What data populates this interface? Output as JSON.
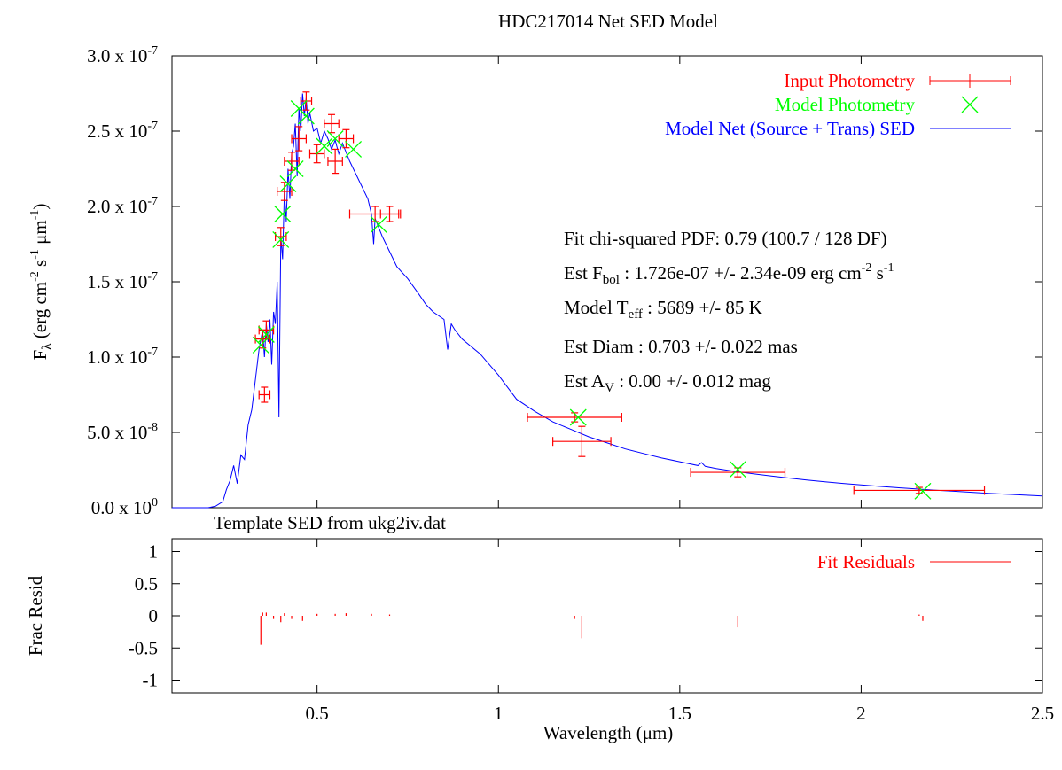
{
  "chart_data": [
    {
      "type": "line",
      "title": "HDC217014 Net SED Model",
      "ylabel": "F_λ (erg cm^-2 s^-1 μm^-1)",
      "xlim": [
        0.1,
        2.5
      ],
      "ylim": [
        0,
        3e-07
      ],
      "y_tick_labels": [
        {
          "v": 0.0,
          "m": "0.0",
          "e": "0"
        },
        {
          "v": 5e-08,
          "m": "5.0",
          "e": "-8"
        },
        {
          "v": 1e-07,
          "m": "1.0",
          "e": "-7"
        },
        {
          "v": 1.5e-07,
          "m": "1.5",
          "e": "-7"
        },
        {
          "v": 2e-07,
          "m": "2.0",
          "e": "-7"
        },
        {
          "v": 2.5e-07,
          "m": "2.5",
          "e": "-7"
        },
        {
          "v": 3e-07,
          "m": "3.0",
          "e": "-7"
        }
      ],
      "legend_position": "top-right",
      "legend": [
        {
          "label": "Input Photometry",
          "color": "#ff0000",
          "marker": "errorbar-cross"
        },
        {
          "label": "Model Photometry",
          "color": "#00ff00",
          "marker": "x"
        },
        {
          "label": "Model Net (Source + Trans) SED",
          "color": "#0000ff",
          "marker": "line"
        }
      ],
      "annotations": {
        "chi2": "Fit chi-squared PDF: 0.79 (100.7 / 128 DF)",
        "fbol_prefix": "Est F",
        "fbol_sub": "bol",
        "fbol_value": " : 1.726e-07 +/- 2.34e-09 erg cm",
        "fbol_exp1": "-2",
        "fbol_mid": " s",
        "fbol_exp2": "-1",
        "teff_prefix": "Model T",
        "teff_sub": "eff",
        "teff_value": " : 5689 +/- 85 K",
        "diam": "Est Diam : 0.703 +/- 0.022 mas",
        "av_prefix": "Est A",
        "av_sub": "V",
        "av_value": " : 0.00 +/- 0.012 mag",
        "template": "Template SED from ukg2iv.dat"
      },
      "series": [
        {
          "name": "Model Net (Source + Trans) SED",
          "color": "#0000ff",
          "x": [
            0.1,
            0.2,
            0.22,
            0.24,
            0.25,
            0.26,
            0.27,
            0.28,
            0.29,
            0.3,
            0.31,
            0.32,
            0.33,
            0.34,
            0.35,
            0.355,
            0.36,
            0.365,
            0.37,
            0.375,
            0.38,
            0.385,
            0.39,
            0.395,
            0.4,
            0.405,
            0.41,
            0.415,
            0.42,
            0.425,
            0.43,
            0.435,
            0.44,
            0.445,
            0.45,
            0.455,
            0.46,
            0.465,
            0.47,
            0.475,
            0.48,
            0.49,
            0.5,
            0.51,
            0.52,
            0.53,
            0.54,
            0.55,
            0.56,
            0.57,
            0.58,
            0.59,
            0.6,
            0.62,
            0.64,
            0.65,
            0.656,
            0.66,
            0.68,
            0.7,
            0.72,
            0.75,
            0.78,
            0.8,
            0.82,
            0.85,
            0.86,
            0.87,
            0.88,
            0.9,
            0.95,
            1.0,
            1.05,
            1.1,
            1.15,
            1.2,
            1.25,
            1.3,
            1.35,
            1.4,
            1.45,
            1.5,
            1.55,
            1.56,
            1.57,
            1.6,
            1.65,
            1.7,
            1.75,
            1.8,
            1.85,
            1.9,
            1.95,
            2.0,
            2.05,
            2.1,
            2.15,
            2.2,
            2.25,
            2.3,
            2.35,
            2.4,
            2.45,
            2.5
          ],
          "y": [
            0,
            0,
            1e-09,
            4e-09,
            1.2e-08,
            1.8e-08,
            2.8e-08,
            1.6e-08,
            3.5e-08,
            3.2e-08,
            5.5e-08,
            6.5e-08,
            8.5e-08,
            1.05e-07,
            1.18e-07,
            1e-07,
            1.22e-07,
            1.1e-07,
            1.25e-07,
            9.5e-08,
            1.3e-07,
            1.22e-07,
            1.5e-07,
            6e-08,
            1.8e-07,
            1.65e-07,
            2.1e-07,
            1.9e-07,
            2.25e-07,
            2.05e-07,
            2.35e-07,
            2.4e-07,
            2.55e-07,
            2.2e-07,
            2.65e-07,
            2.5e-07,
            2.75e-07,
            2.6e-07,
            2.72e-07,
            2.55e-07,
            2.62e-07,
            2.5e-07,
            2.52e-07,
            2.42e-07,
            2.5e-07,
            2.45e-07,
            2.38e-07,
            2.44e-07,
            2.35e-07,
            2.42e-07,
            2.36e-07,
            2.3e-07,
            2.25e-07,
            2.15e-07,
            2.05e-07,
            1.95e-07,
            1.75e-07,
            1.92e-07,
            1.8e-07,
            1.7e-07,
            1.6e-07,
            1.52e-07,
            1.42e-07,
            1.35e-07,
            1.3e-07,
            1.25e-07,
            1.05e-07,
            1.22e-07,
            1.18e-07,
            1.12e-07,
            1.02e-07,
            8.8e-08,
            7.2e-08,
            6.4e-08,
            5.7e-08,
            5.2e-08,
            4.7e-08,
            4.3e-08,
            3.9e-08,
            3.6e-08,
            3.3e-08,
            3.05e-08,
            2.8e-08,
            3e-08,
            2.75e-08,
            2.6e-08,
            2.42e-08,
            2.26e-08,
            2.11e-08,
            1.97e-08,
            1.84e-08,
            1.72e-08,
            1.61e-08,
            1.51e-08,
            1.42e-08,
            1.33e-08,
            1.25e-08,
            1.17e-08,
            1.1e-08,
            1.03e-08,
            9.6e-09,
            9e-09,
            8.4e-09,
            7.8e-09
          ]
        },
        {
          "name": "Input Photometry",
          "color": "#ff0000",
          "points": [
            {
              "x": 0.35,
              "y": 1.12e-07,
              "xerr": 0.02,
              "yerr": 6e-09
            },
            {
              "x": 0.36,
              "y": 1.18e-07,
              "xerr": 0.02,
              "yerr": 6e-09
            },
            {
              "x": 0.355,
              "y": 7.5e-08,
              "xerr": 0.015,
              "yerr": 5e-09
            },
            {
              "x": 0.4,
              "y": 1.8e-07,
              "xerr": 0.015,
              "yerr": 6e-09
            },
            {
              "x": 0.41,
              "y": 2.1e-07,
              "xerr": 0.02,
              "yerr": 6e-09
            },
            {
              "x": 0.43,
              "y": 2.3e-07,
              "xerr": 0.02,
              "yerr": 6e-09
            },
            {
              "x": 0.45,
              "y": 2.45e-07,
              "xerr": 0.02,
              "yerr": 8e-09
            },
            {
              "x": 0.47,
              "y": 2.7e-07,
              "xerr": 0.015,
              "yerr": 6e-09
            },
            {
              "x": 0.5,
              "y": 2.35e-07,
              "xerr": 0.02,
              "yerr": 6e-09
            },
            {
              "x": 0.54,
              "y": 2.55e-07,
              "xerr": 0.02,
              "yerr": 6e-09
            },
            {
              "x": 0.55,
              "y": 2.3e-07,
              "xerr": 0.02,
              "yerr": 8e-09
            },
            {
              "x": 0.58,
              "y": 2.45e-07,
              "xerr": 0.02,
              "yerr": 6e-09
            },
            {
              "x": 0.66,
              "y": 1.95e-07,
              "xerr": 0.07,
              "yerr": 5e-09
            },
            {
              "x": 0.7,
              "y": 1.95e-07,
              "xerr": 0.025,
              "yerr": 5e-09
            },
            {
              "x": 1.21,
              "y": 6e-08,
              "xerr": 0.13,
              "yerr": 3e-09
            },
            {
              "x": 1.23,
              "y": 4.4e-08,
              "xerr": 0.08,
              "yerr": 1e-08
            },
            {
              "x": 1.66,
              "y": 2.35e-08,
              "xerr": 0.13,
              "yerr": 3e-09
            },
            {
              "x": 2.16,
              "y": 1.15e-08,
              "xerr": 0.18,
              "yerr": 2e-09
            }
          ]
        },
        {
          "name": "Model Photometry",
          "color": "#00ff00",
          "points": [
            {
              "x": 0.345,
              "y": 1.08e-07
            },
            {
              "x": 0.36,
              "y": 1.15e-07
            },
            {
              "x": 0.4,
              "y": 1.78e-07
            },
            {
              "x": 0.405,
              "y": 1.95e-07
            },
            {
              "x": 0.42,
              "y": 2.15e-07
            },
            {
              "x": 0.44,
              "y": 2.25e-07
            },
            {
              "x": 0.45,
              "y": 2.65e-07
            },
            {
              "x": 0.47,
              "y": 2.6e-07
            },
            {
              "x": 0.52,
              "y": 2.4e-07
            },
            {
              "x": 0.55,
              "y": 2.45e-07
            },
            {
              "x": 0.6,
              "y": 2.38e-07
            },
            {
              "x": 0.67,
              "y": 1.88e-07
            },
            {
              "x": 1.22,
              "y": 6e-08
            },
            {
              "x": 1.66,
              "y": 2.55e-08
            },
            {
              "x": 2.17,
              "y": 1.1e-08
            }
          ]
        }
      ]
    },
    {
      "type": "line",
      "ylabel": "Frac Resid",
      "xlabel": "Wavelength (μm)",
      "xlim": [
        0.1,
        2.5
      ],
      "ylim": [
        -1.2,
        1.2
      ],
      "x_tick_labels": [
        "0.5",
        "1",
        "1.5",
        "2",
        "2.5"
      ],
      "x_ticks": [
        0.5,
        1,
        1.5,
        2,
        2.5
      ],
      "y_tick_labels": [
        "1",
        "0.5",
        "0",
        "-0.5",
        "-1"
      ],
      "y_ticks": [
        1,
        0.5,
        0,
        -0.5,
        -1
      ],
      "legend_position": "top-right",
      "legend": [
        {
          "label": "Fit Residuals",
          "color": "#ff0000",
          "marker": "line"
        }
      ],
      "series": [
        {
          "name": "Fit Residuals",
          "color": "#ff0000",
          "points": [
            {
              "x": 0.345,
              "y": -0.45
            },
            {
              "x": 0.35,
              "y": 0.05
            },
            {
              "x": 0.36,
              "y": 0.05
            },
            {
              "x": 0.38,
              "y": -0.05
            },
            {
              "x": 0.4,
              "y": -0.1
            },
            {
              "x": 0.41,
              "y": 0.04
            },
            {
              "x": 0.43,
              "y": -0.05
            },
            {
              "x": 0.46,
              "y": -0.08
            },
            {
              "x": 0.5,
              "y": 0.03
            },
            {
              "x": 0.55,
              "y": 0.03
            },
            {
              "x": 0.58,
              "y": 0.04
            },
            {
              "x": 0.65,
              "y": 0.03
            },
            {
              "x": 0.7,
              "y": 0.02
            },
            {
              "x": 1.21,
              "y": -0.05
            },
            {
              "x": 1.23,
              "y": -0.35
            },
            {
              "x": 1.66,
              "y": -0.18
            },
            {
              "x": 2.16,
              "y": 0.02
            },
            {
              "x": 2.17,
              "y": -0.08
            }
          ]
        }
      ]
    }
  ]
}
